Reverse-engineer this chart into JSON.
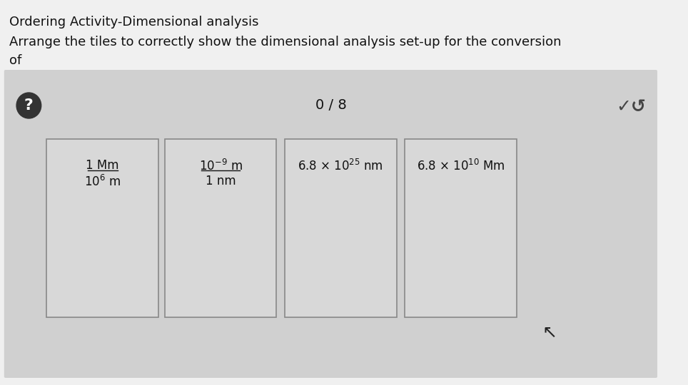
{
  "title": "Ordering Activity-Dimensional analysis",
  "subtitle": "Arrange the tiles to correctly show the dimensional analysis set-up for the conversion\nof",
  "background_color": "#d8d8d8",
  "top_bg_color": "#f0f0f0",
  "panel_bg_color": "#d0d0d0",
  "tile_bg_color": "#d8d8d8",
  "tile_border_color": "#888888",
  "score_text": "0 / 8",
  "tiles": [
    {
      "top_text": "1 Mm",
      "top_underline": true,
      "bottom_text": "10⁶ m",
      "bottom_superscript": "6"
    },
    {
      "top_text": "10⁻⁹ m",
      "top_underline": true,
      "bottom_text": "1 nm",
      "bottom_superscript": null
    },
    {
      "top_text": "6.8 × 10²⁵ nm",
      "top_underline": false,
      "bottom_text": null,
      "bottom_superscript": null
    },
    {
      "top_text": "6.8 × 10¹⁰ Mm",
      "top_underline": false,
      "bottom_text": null,
      "bottom_superscript": null
    }
  ]
}
